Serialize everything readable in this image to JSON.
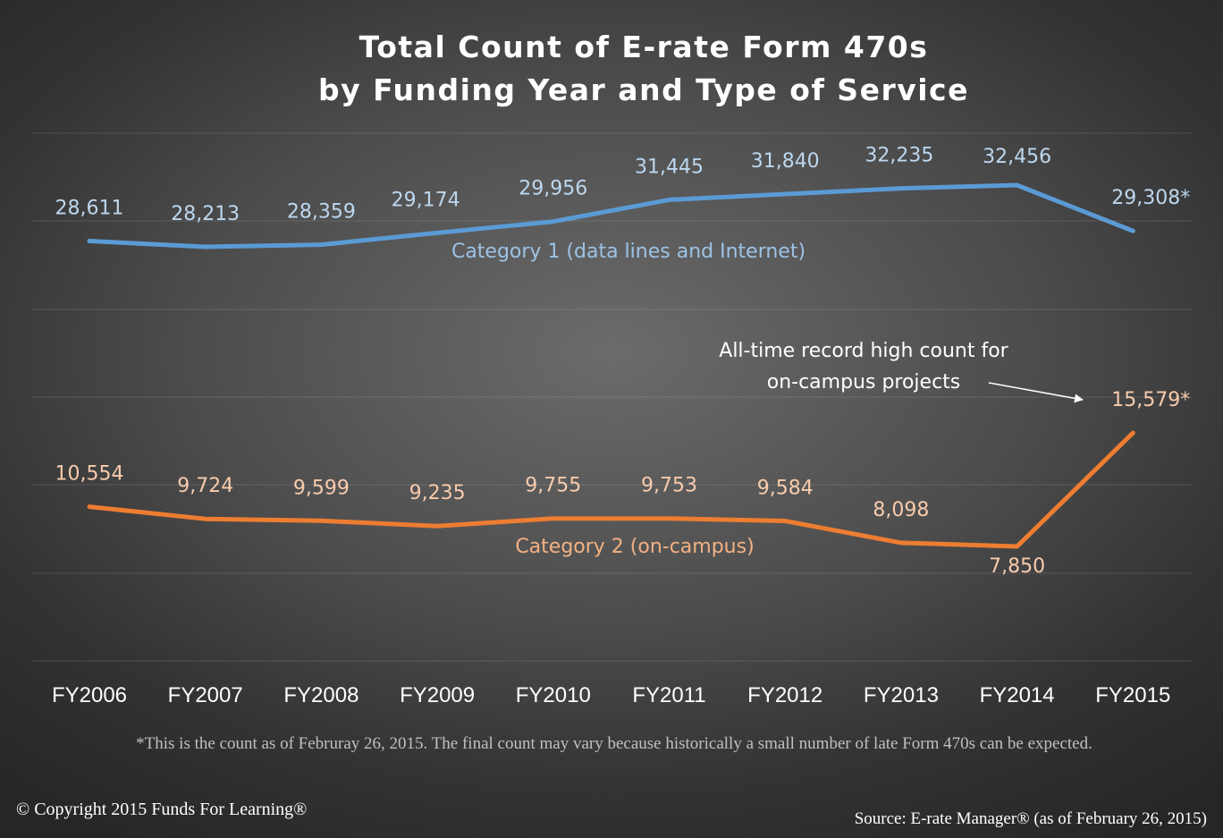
{
  "chart_data": {
    "type": "line",
    "title": "Total Count of E-rate Form 470s",
    "subtitle": "by Funding Year and Type of Service",
    "categories": [
      "FY2006",
      "FY2007",
      "FY2008",
      "FY2009",
      "FY2010",
      "FY2011",
      "FY2012",
      "FY2013",
      "FY2014",
      "FY2015"
    ],
    "series": [
      {
        "name": "Category 1 (data lines and Internet)",
        "color": "#5b9bd5",
        "label_color": "#bdd7ee",
        "values": [
          28611,
          28213,
          28359,
          29174,
          29956,
          31445,
          31840,
          32235,
          32456,
          29308
        ],
        "labels": [
          "28,611",
          "28,213",
          "28,359",
          "29,174",
          "29,956",
          "31,445",
          "31,840",
          "32,235",
          "32,456",
          "29,308*"
        ]
      },
      {
        "name": "Category 2 (on-campus)",
        "color": "#ed7d31",
        "label_color": "#f8cbad",
        "values": [
          10554,
          9724,
          9599,
          9235,
          9755,
          9753,
          9584,
          8098,
          7850,
          15579
        ],
        "labels": [
          "10,554",
          "9,724",
          "9,599",
          "9,235",
          "9,755",
          "9,753",
          "9,584",
          "8,098",
          "7,850",
          "15,579*"
        ]
      }
    ],
    "annotation": {
      "text_line1": "All-time record high count for",
      "text_line2": "on-campus projects"
    },
    "grid": true
  },
  "footnote": "*This is the count as of Februray 26, 2015. The final count may vary because historically a small number of late Form 470s can be expected.",
  "copyright": "© Copyright 2015 Funds For Learning®",
  "source": "Source: E-rate Manager®  (as of February 26, 2015)"
}
